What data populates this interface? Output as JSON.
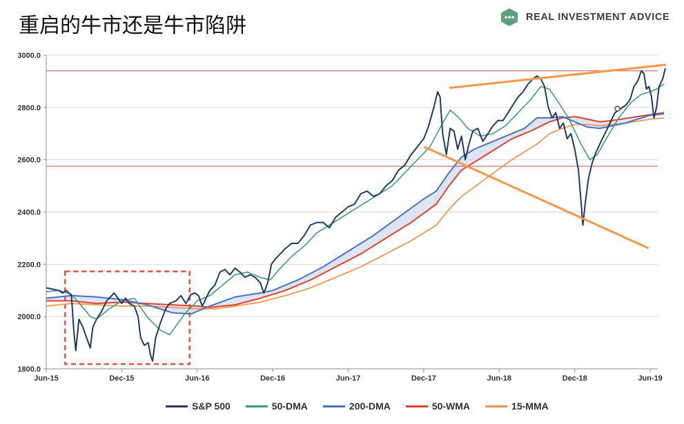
{
  "header": {
    "title": "重启的牛市还是牛市陷阱",
    "brand": "REAL INVESTMENT ADVICE"
  },
  "colors": {
    "sp500": "#1f3864",
    "dma50": "#3e9a7f",
    "dma200": "#4472c4",
    "wma50": "#e0412b",
    "mma15": "#f0954a",
    "band_fill": "#cfd9ec",
    "hline": "#c0504d",
    "trend": "#f79646",
    "box": "#e0503c",
    "brand_green": "#5fa37a"
  },
  "chart_data": {
    "type": "line",
    "xlabel": "",
    "ylabel": "",
    "ylim": [
      1800,
      3000
    ],
    "yticks": [
      "3000.0",
      "2800.0",
      "2600.0",
      "2400.0",
      "2200.0",
      "2000.0",
      "1800.0"
    ],
    "ytick_values": [
      3000,
      2800,
      2600,
      2400,
      2200,
      2000,
      1800
    ],
    "xlim_months": [
      0,
      48.6
    ],
    "xticks": [
      {
        "label": "Jun-15",
        "m": 0
      },
      {
        "label": "Dec-15",
        "m": 6
      },
      {
        "label": "Jun-16",
        "m": 12
      },
      {
        "label": "Dec-16",
        "m": 18
      },
      {
        "label": "Jun-17",
        "m": 24
      },
      {
        "label": "Dec-17",
        "m": 30
      },
      {
        "label": "Jun-18",
        "m": 36
      },
      {
        "label": "Dec-18",
        "m": 42
      },
      {
        "label": "Jun-19",
        "m": 48
      }
    ],
    "grid": true,
    "legend": "bottom",
    "series": [
      {
        "name": "S&P 500",
        "key": "sp500",
        "points": [
          [
            0,
            2110
          ],
          [
            0.5,
            2105
          ],
          [
            1,
            2100
          ],
          [
            1.3,
            2090
          ],
          [
            1.6,
            2100
          ],
          [
            2,
            2080
          ],
          [
            2.2,
            1940
          ],
          [
            2.35,
            1870
          ],
          [
            2.6,
            1990
          ],
          [
            2.9,
            1960
          ],
          [
            3.2,
            1920
          ],
          [
            3.5,
            1880
          ],
          [
            3.7,
            1960
          ],
          [
            4,
            1990
          ],
          [
            4.4,
            2020
          ],
          [
            4.8,
            2060
          ],
          [
            5.1,
            2075
          ],
          [
            5.4,
            2090
          ],
          [
            5.7,
            2070
          ],
          [
            6,
            2050
          ],
          [
            6.3,
            2070
          ],
          [
            6.6,
            2050
          ],
          [
            7,
            2040
          ],
          [
            7.3,
            2000
          ],
          [
            7.5,
            1920
          ],
          [
            7.8,
            1890
          ],
          [
            8.1,
            1900
          ],
          [
            8.3,
            1850
          ],
          [
            8.45,
            1830
          ],
          [
            8.7,
            1920
          ],
          [
            9.1,
            1980
          ],
          [
            9.5,
            2030
          ],
          [
            9.8,
            2050
          ],
          [
            10.3,
            2060
          ],
          [
            10.7,
            2080
          ],
          [
            11.1,
            2050
          ],
          [
            11.5,
            2085
          ],
          [
            11.8,
            2090
          ],
          [
            12.1,
            2080
          ],
          [
            12.4,
            2040
          ],
          [
            12.7,
            2070
          ],
          [
            13,
            2100
          ],
          [
            13.4,
            2120
          ],
          [
            13.8,
            2170
          ],
          [
            14.2,
            2180
          ],
          [
            14.6,
            2160
          ],
          [
            15,
            2185
          ],
          [
            15.4,
            2170
          ],
          [
            15.8,
            2150
          ],
          [
            16.2,
            2160
          ],
          [
            16.6,
            2150
          ],
          [
            17,
            2130
          ],
          [
            17.3,
            2090
          ],
          [
            17.6,
            2130
          ],
          [
            17.9,
            2200
          ],
          [
            18.2,
            2220
          ],
          [
            18.6,
            2240
          ],
          [
            19,
            2260
          ],
          [
            19.5,
            2280
          ],
          [
            20,
            2280
          ],
          [
            20.5,
            2310
          ],
          [
            21,
            2350
          ],
          [
            21.5,
            2360
          ],
          [
            22,
            2360
          ],
          [
            22.5,
            2340
          ],
          [
            23,
            2380
          ],
          [
            23.5,
            2400
          ],
          [
            24,
            2420
          ],
          [
            24.5,
            2430
          ],
          [
            25,
            2470
          ],
          [
            25.5,
            2480
          ],
          [
            26,
            2460
          ],
          [
            26.5,
            2470
          ],
          [
            27,
            2500
          ],
          [
            27.5,
            2520
          ],
          [
            28,
            2560
          ],
          [
            28.5,
            2580
          ],
          [
            29,
            2620
          ],
          [
            29.5,
            2650
          ],
          [
            30,
            2680
          ],
          [
            30.4,
            2730
          ],
          [
            30.8,
            2800
          ],
          [
            31.1,
            2860
          ],
          [
            31.3,
            2840
          ],
          [
            31.5,
            2700
          ],
          [
            31.8,
            2620
          ],
          [
            32.1,
            2720
          ],
          [
            32.4,
            2710
          ],
          [
            32.7,
            2640
          ],
          [
            33,
            2690
          ],
          [
            33.3,
            2600
          ],
          [
            33.6,
            2660
          ],
          [
            33.9,
            2710
          ],
          [
            34.3,
            2720
          ],
          [
            34.7,
            2670
          ],
          [
            35.1,
            2700
          ],
          [
            35.5,
            2730
          ],
          [
            35.9,
            2750
          ],
          [
            36.3,
            2750
          ],
          [
            36.7,
            2780
          ],
          [
            37.1,
            2810
          ],
          [
            37.5,
            2840
          ],
          [
            37.9,
            2860
          ],
          [
            38.3,
            2890
          ],
          [
            38.7,
            2910
          ],
          [
            39,
            2920
          ],
          [
            39.3,
            2910
          ],
          [
            39.6,
            2880
          ],
          [
            39.9,
            2800
          ],
          [
            40.2,
            2760
          ],
          [
            40.5,
            2780
          ],
          [
            40.8,
            2720
          ],
          [
            41.1,
            2740
          ],
          [
            41.4,
            2680
          ],
          [
            41.7,
            2700
          ],
          [
            42,
            2640
          ],
          [
            42.3,
            2560
          ],
          [
            42.5,
            2440
          ],
          [
            42.65,
            2350
          ],
          [
            42.85,
            2440
          ],
          [
            43.1,
            2530
          ],
          [
            43.4,
            2590
          ],
          [
            43.7,
            2630
          ],
          [
            44,
            2660
          ],
          [
            44.3,
            2690
          ],
          [
            44.6,
            2720
          ],
          [
            44.9,
            2750
          ],
          [
            45.2,
            2780
          ],
          [
            45.5,
            2790
          ],
          [
            45.8,
            2800
          ],
          [
            46.1,
            2810
          ],
          [
            46.4,
            2830
          ],
          [
            46.7,
            2880
          ],
          [
            47,
            2900
          ],
          [
            47.3,
            2940
          ],
          [
            47.5,
            2930
          ],
          [
            47.7,
            2870
          ],
          [
            47.9,
            2880
          ],
          [
            48.1,
            2840
          ],
          [
            48.3,
            2760
          ],
          [
            48.5,
            2800
          ],
          [
            48.7,
            2880
          ],
          [
            49,
            2910
          ],
          [
            49.2,
            2950
          ]
        ]
      },
      {
        "name": "50-DMA",
        "key": "dma50",
        "points": [
          [
            0,
            2095
          ],
          [
            1,
            2100
          ],
          [
            2,
            2085
          ],
          [
            3,
            2030
          ],
          [
            3.5,
            2000
          ],
          [
            4,
            1990
          ],
          [
            5,
            2030
          ],
          [
            6,
            2060
          ],
          [
            7,
            2070
          ],
          [
            8,
            2000
          ],
          [
            9,
            1950
          ],
          [
            9.8,
            1930
          ],
          [
            11,
            2010
          ],
          [
            12,
            2060
          ],
          [
            13,
            2080
          ],
          [
            14,
            2120
          ],
          [
            15,
            2160
          ],
          [
            16,
            2170
          ],
          [
            17,
            2150
          ],
          [
            17.8,
            2140
          ],
          [
            18.5,
            2180
          ],
          [
            19.5,
            2230
          ],
          [
            20.5,
            2270
          ],
          [
            21.5,
            2320
          ],
          [
            22.5,
            2350
          ],
          [
            23.5,
            2380
          ],
          [
            24.5,
            2410
          ],
          [
            25.5,
            2440
          ],
          [
            26.5,
            2470
          ],
          [
            27.5,
            2500
          ],
          [
            28.5,
            2550
          ],
          [
            29.5,
            2600
          ],
          [
            30.5,
            2650
          ],
          [
            31.5,
            2740
          ],
          [
            32.1,
            2790
          ],
          [
            32.8,
            2760
          ],
          [
            33.5,
            2720
          ],
          [
            34.5,
            2690
          ],
          [
            35.5,
            2700
          ],
          [
            36.5,
            2730
          ],
          [
            37.5,
            2780
          ],
          [
            38.5,
            2830
          ],
          [
            39.3,
            2880
          ],
          [
            40,
            2870
          ],
          [
            40.7,
            2820
          ],
          [
            41.5,
            2760
          ],
          [
            42.5,
            2660
          ],
          [
            43.2,
            2600
          ],
          [
            43.8,
            2620
          ],
          [
            44.5,
            2680
          ],
          [
            45.5,
            2760
          ],
          [
            46.5,
            2820
          ],
          [
            47.3,
            2850
          ],
          [
            48,
            2860
          ],
          [
            48.5,
            2870
          ],
          [
            49.1,
            2890
          ]
        ]
      },
      {
        "name": "200-DMA",
        "key": "dma200",
        "points": [
          [
            0,
            2070
          ],
          [
            2,
            2080
          ],
          [
            4,
            2075
          ],
          [
            6,
            2065
          ],
          [
            8,
            2045
          ],
          [
            10,
            2015
          ],
          [
            11.5,
            2010
          ],
          [
            13,
            2040
          ],
          [
            15,
            2075
          ],
          [
            17,
            2090
          ],
          [
            18,
            2100
          ],
          [
            20,
            2140
          ],
          [
            22,
            2190
          ],
          [
            24,
            2250
          ],
          [
            26,
            2310
          ],
          [
            28,
            2380
          ],
          [
            30,
            2450
          ],
          [
            31,
            2480
          ],
          [
            32,
            2550
          ],
          [
            33,
            2610
          ],
          [
            34,
            2640
          ],
          [
            36,
            2680
          ],
          [
            38,
            2720
          ],
          [
            39,
            2760
          ],
          [
            40,
            2760
          ],
          [
            41,
            2765
          ],
          [
            42,
            2745
          ],
          [
            43,
            2725
          ],
          [
            44,
            2720
          ],
          [
            45,
            2730
          ],
          [
            46,
            2740
          ],
          [
            47,
            2755
          ],
          [
            48,
            2770
          ],
          [
            49.1,
            2775
          ]
        ]
      },
      {
        "name": "50-WMA",
        "key": "wma50",
        "points": [
          [
            0,
            2060
          ],
          [
            2,
            2060
          ],
          [
            4,
            2050
          ],
          [
            6,
            2055
          ],
          [
            8,
            2050
          ],
          [
            10,
            2045
          ],
          [
            12,
            2040
          ],
          [
            13,
            2035
          ],
          [
            15,
            2045
          ],
          [
            17,
            2070
          ],
          [
            19,
            2100
          ],
          [
            21,
            2140
          ],
          [
            23,
            2190
          ],
          [
            25,
            2240
          ],
          [
            27,
            2300
          ],
          [
            29,
            2360
          ],
          [
            31,
            2430
          ],
          [
            32,
            2500
          ],
          [
            33,
            2560
          ],
          [
            35,
            2620
          ],
          [
            37,
            2680
          ],
          [
            38.5,
            2710
          ],
          [
            40,
            2745
          ],
          [
            41,
            2760
          ],
          [
            42,
            2765
          ],
          [
            43,
            2755
          ],
          [
            44,
            2745
          ],
          [
            45,
            2750
          ],
          [
            47,
            2765
          ],
          [
            49.1,
            2780
          ]
        ]
      },
      {
        "name": "15-MMA",
        "key": "mma15",
        "points": [
          [
            0,
            2040
          ],
          [
            2,
            2050
          ],
          [
            4,
            2045
          ],
          [
            6,
            2040
          ],
          [
            8,
            2040
          ],
          [
            10,
            2035
          ],
          [
            12,
            2030
          ],
          [
            13.5,
            2030
          ],
          [
            15,
            2040
          ],
          [
            17,
            2055
          ],
          [
            19,
            2080
          ],
          [
            21,
            2110
          ],
          [
            23,
            2150
          ],
          [
            25,
            2190
          ],
          [
            27,
            2240
          ],
          [
            29,
            2290
          ],
          [
            31,
            2350
          ],
          [
            32,
            2410
          ],
          [
            33,
            2460
          ],
          [
            35,
            2530
          ],
          [
            37,
            2600
          ],
          [
            39,
            2660
          ],
          [
            40,
            2700
          ],
          [
            41,
            2720
          ],
          [
            42,
            2735
          ],
          [
            43,
            2735
          ],
          [
            44,
            2730
          ],
          [
            46,
            2740
          ],
          [
            48,
            2755
          ],
          [
            49.1,
            2760
          ]
        ]
      }
    ],
    "hlines": [
      2940,
      2575
    ],
    "trendlines": [
      {
        "from": [
          32.1,
          2875
        ],
        "to": [
          49.2,
          2963
        ]
      },
      {
        "from": [
          30.1,
          2648
        ],
        "to": [
          47.8,
          2263
        ]
      }
    ],
    "box": {
      "x0": 1.5,
      "x1": 11.4,
      "y0": 1818,
      "y1": 2173
    },
    "marker": {
      "m": 45.4,
      "v": 2795
    }
  }
}
